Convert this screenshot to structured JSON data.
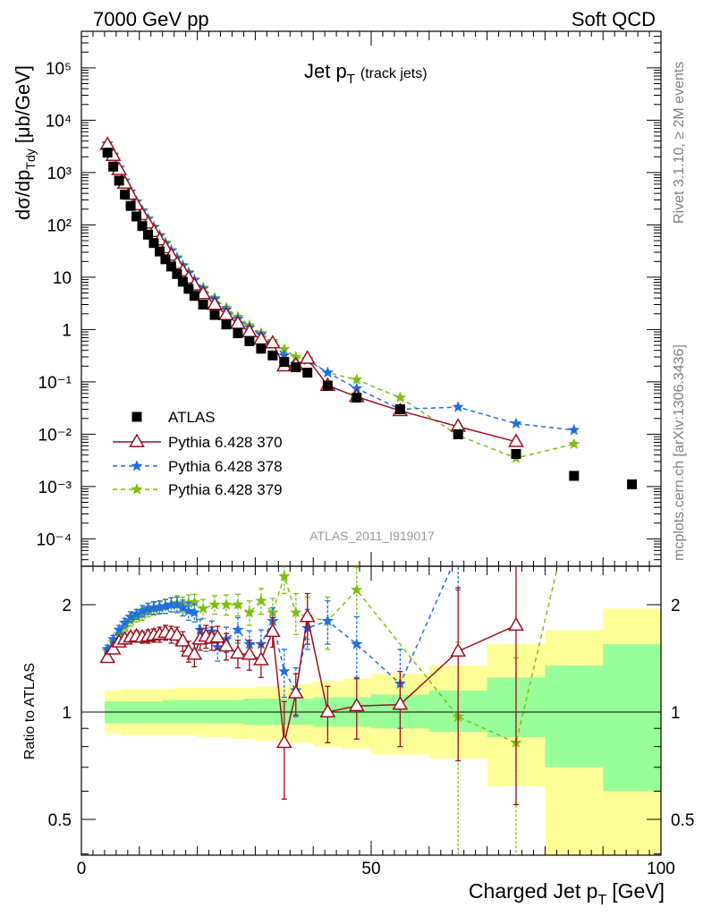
{
  "header": {
    "energy": "7000 GeV pp",
    "category": "Soft QCD"
  },
  "title": {
    "main": "Jet p",
    "sub": "T",
    "note": "(track jets)"
  },
  "side_labels": {
    "rivet": "Rivet 3.1.10, ≥ 2M events",
    "mcplots": "mcplots.cern.ch [arXiv:1306.3436]"
  },
  "watermark": "ATLAS_2011_I919017",
  "colors": {
    "atlas": "#000000",
    "p370": "#9b1020",
    "p378": "#1f6fe0",
    "p379": "#7fbf10",
    "band_syst": "#ffff99",
    "band_stat": "#99ff99"
  },
  "chart_data": [
    {
      "type": "scatter",
      "panel": "main",
      "ylabel": "dσ/dp",
      "ylabel_sub": "Tdy",
      "ylabel_unit": "[μb/GeV]",
      "log_y": true,
      "ylim": [
        3e-05,
        500000
      ],
      "xlim": [
        0,
        100
      ],
      "ytick_labels": [
        "10⁻⁴",
        "10⁻³",
        "10⁻²",
        "10⁻¹",
        "1",
        "10",
        "10²",
        "10³",
        "10⁴",
        "10⁵"
      ],
      "legend_position": "left-lower",
      "series": [
        {
          "name": "ATLAS",
          "style": "square",
          "x": [
            4.5,
            5.5,
            6.5,
            7.5,
            8.5,
            9.5,
            10.5,
            11.5,
            12.5,
            13.5,
            14.5,
            15.5,
            16.5,
            17.5,
            18.5,
            19.5,
            21,
            23,
            25,
            27,
            29,
            31,
            33,
            35,
            37,
            39,
            42.5,
            47.5,
            55,
            65,
            75,
            85,
            95
          ],
          "y": [
            2400,
            1300,
            700,
            380,
            230,
            145,
            95,
            65,
            45,
            31,
            22,
            16,
            11.5,
            8.2,
            6,
            4.4,
            3,
            1.9,
            1.25,
            0.85,
            0.6,
            0.43,
            0.32,
            0.24,
            0.19,
            0.15,
            0.085,
            0.05,
            0.03,
            0.01,
            0.0042,
            0.0016,
            0.0011
          ]
        },
        {
          "name": "Pythia 6.428 370",
          "style": "open-triangle",
          "x": [
            4.5,
            5.5,
            6.5,
            7.5,
            8.5,
            9.5,
            10.5,
            11.5,
            12.5,
            13.5,
            14.5,
            15.5,
            16.5,
            17.5,
            18.5,
            19.5,
            21,
            23,
            25,
            27,
            29,
            31,
            33,
            35,
            37,
            39,
            42.5,
            47.5,
            55,
            65,
            75
          ],
          "y": [
            3400,
            2100,
            1130,
            620,
            380,
            240,
            155,
            107,
            74,
            51,
            36,
            26,
            18,
            13,
            9.5,
            7,
            4.8,
            3,
            1.9,
            1.3,
            0.9,
            0.65,
            0.55,
            0.2,
            0.21,
            0.28,
            0.085,
            0.052,
            0.028,
            0.014,
            0.0072
          ]
        },
        {
          "name": "Pythia 6.428 378",
          "style": "star-dashed",
          "x": [
            4.5,
            5.5,
            6.5,
            7.5,
            8.5,
            9.5,
            10.5,
            11.5,
            12.5,
            13.5,
            14.5,
            15.5,
            16.5,
            17.5,
            18.5,
            19.5,
            21,
            23,
            25,
            27,
            29,
            31,
            33,
            35,
            37,
            39,
            42.5,
            47.5,
            55,
            65,
            75,
            85
          ],
          "y": [
            3600,
            2200,
            1240,
            700,
            430,
            275,
            185,
            130,
            90,
            62,
            44,
            32,
            23,
            16.5,
            12,
            8.8,
            6,
            3.8,
            2.4,
            1.6,
            1.1,
            0.8,
            0.55,
            0.32,
            0.22,
            0.26,
            0.15,
            0.075,
            0.03,
            0.033,
            0.016,
            0.012
          ]
        },
        {
          "name": "Pythia 6.428 379",
          "style": "star-dashed",
          "x": [
            4.5,
            5.5,
            6.5,
            7.5,
            8.5,
            9.5,
            10.5,
            11.5,
            12.5,
            13.5,
            14.5,
            15.5,
            16.5,
            17.5,
            18.5,
            19.5,
            21,
            23,
            25,
            27,
            29,
            31,
            33,
            35,
            37,
            39,
            42.5,
            47.5,
            55,
            65,
            75,
            85
          ],
          "y": [
            3500,
            2100,
            1200,
            700,
            430,
            280,
            190,
            132,
            92,
            64,
            46,
            33,
            24,
            17,
            12.5,
            9,
            6.3,
            4,
            2.6,
            1.75,
            1.2,
            0.85,
            0.6,
            0.42,
            0.3,
            0.27,
            0.15,
            0.11,
            0.05,
            0.0095,
            0.0035,
            0.0065
          ]
        }
      ]
    },
    {
      "type": "line",
      "panel": "ratio",
      "ylabel": "Ratio to ATLAS",
      "xlabel": "Charged Jet p",
      "xlabel_sub": "T",
      "xlabel_unit": "[GeV]",
      "xlim": [
        0,
        100
      ],
      "ylim": [
        0.35,
        2.3
      ],
      "xtick_labels": [
        "0",
        "50",
        "100"
      ],
      "ytick_labels": [
        "0.5",
        "1",
        "2"
      ],
      "bands": {
        "edges": [
          4,
          5,
          6,
          7,
          8,
          9,
          10,
          11,
          12,
          13,
          14,
          15,
          16,
          17,
          18,
          19,
          20,
          22,
          24,
          26,
          28,
          30,
          32,
          34,
          36,
          38,
          40,
          45,
          50,
          60,
          70,
          80,
          90,
          100
        ],
        "stat_lo": [
          0.93,
          0.93,
          0.93,
          0.93,
          0.93,
          0.93,
          0.93,
          0.93,
          0.93,
          0.93,
          0.93,
          0.93,
          0.93,
          0.93,
          0.93,
          0.93,
          0.93,
          0.93,
          0.93,
          0.93,
          0.92,
          0.92,
          0.92,
          0.92,
          0.92,
          0.92,
          0.91,
          0.91,
          0.9,
          0.88,
          0.85,
          0.7,
          0.6
        ],
        "stat_hi": [
          1.07,
          1.07,
          1.07,
          1.07,
          1.07,
          1.07,
          1.07,
          1.07,
          1.07,
          1.07,
          1.08,
          1.08,
          1.08,
          1.08,
          1.08,
          1.08,
          1.08,
          1.08,
          1.08,
          1.08,
          1.09,
          1.09,
          1.09,
          1.09,
          1.09,
          1.09,
          1.1,
          1.1,
          1.12,
          1.15,
          1.25,
          1.35,
          1.55
        ],
        "syst_lo": [
          0.87,
          0.87,
          0.87,
          0.86,
          0.86,
          0.86,
          0.86,
          0.86,
          0.86,
          0.86,
          0.86,
          0.86,
          0.86,
          0.86,
          0.86,
          0.86,
          0.85,
          0.85,
          0.85,
          0.84,
          0.84,
          0.83,
          0.83,
          0.83,
          0.82,
          0.82,
          0.8,
          0.79,
          0.76,
          0.74,
          0.62,
          0.3,
          0.3
        ],
        "syst_hi": [
          1.15,
          1.15,
          1.15,
          1.16,
          1.16,
          1.16,
          1.16,
          1.16,
          1.16,
          1.16,
          1.16,
          1.16,
          1.17,
          1.17,
          1.17,
          1.17,
          1.17,
          1.17,
          1.17,
          1.17,
          1.17,
          1.18,
          1.18,
          1.18,
          1.19,
          1.2,
          1.22,
          1.24,
          1.28,
          1.35,
          1.55,
          1.7,
          1.95
        ]
      },
      "series": [
        {
          "name": "Pythia 6.428 370",
          "x": [
            4.5,
            5.5,
            6.5,
            7.5,
            8.5,
            9.5,
            10.5,
            11.5,
            12.5,
            13.5,
            14.5,
            15.5,
            16.5,
            17.5,
            18.5,
            19.5,
            20.5,
            21.5,
            22.5,
            23.5,
            25,
            27,
            29,
            31,
            33,
            35,
            37,
            39,
            42.5,
            47.5,
            55,
            65,
            75
          ],
          "y": [
            1.42,
            1.5,
            1.57,
            1.6,
            1.62,
            1.63,
            1.62,
            1.63,
            1.64,
            1.65,
            1.67,
            1.65,
            1.64,
            1.58,
            1.48,
            1.45,
            1.6,
            1.63,
            1.61,
            1.62,
            1.53,
            1.46,
            1.45,
            1.4,
            1.68,
            0.82,
            1.13,
            1.85,
            1.0,
            1.04,
            1.05,
            1.48,
            1.75
          ],
          "err": [
            0.04,
            0.04,
            0.04,
            0.05,
            0.05,
            0.06,
            0.06,
            0.07,
            0.07,
            0.08,
            0.08,
            0.09,
            0.09,
            0.1,
            0.1,
            0.11,
            0.11,
            0.12,
            0.12,
            0.12,
            0.13,
            0.13,
            0.14,
            0.15,
            0.16,
            0.25,
            0.15,
            0.3,
            0.18,
            0.2,
            0.25,
            0.75,
            1.2
          ]
        },
        {
          "name": "Pythia 6.428 378",
          "x": [
            4.5,
            5.5,
            6.5,
            7.5,
            8.5,
            9.5,
            10.5,
            11.5,
            12.5,
            13.5,
            14.5,
            15.5,
            16.5,
            17.5,
            18.5,
            19.5,
            20.5,
            21.5,
            22.5,
            23.5,
            25,
            27,
            29,
            31,
            33,
            35,
            37,
            39,
            42.5,
            47.5,
            55,
            65
          ],
          "y": [
            1.5,
            1.6,
            1.7,
            1.78,
            1.85,
            1.88,
            1.92,
            1.95,
            1.96,
            1.97,
            1.98,
            2.0,
            2.0,
            1.96,
            1.92,
            1.9,
            1.7,
            1.6,
            1.68,
            1.52,
            1.6,
            1.7,
            1.55,
            1.55,
            1.8,
            1.3,
            1.15,
            1.72,
            1.8,
            1.55,
            1.2,
            2.8
          ],
          "err": [
            0.04,
            0.04,
            0.05,
            0.05,
            0.06,
            0.06,
            0.07,
            0.07,
            0.08,
            0.08,
            0.09,
            0.09,
            0.1,
            0.1,
            0.11,
            0.11,
            0.12,
            0.12,
            0.12,
            0.13,
            0.13,
            0.14,
            0.14,
            0.15,
            0.16,
            0.2,
            0.18,
            0.22,
            0.25,
            0.3,
            0.3,
            0.6
          ]
        },
        {
          "name": "Pythia 6.428 379",
          "x": [
            4.5,
            5.5,
            6.5,
            7.5,
            8.5,
            9.5,
            10.5,
            11.5,
            12.5,
            13.5,
            14.5,
            15.5,
            16.5,
            17.5,
            18.5,
            19.5,
            21,
            23,
            25,
            27,
            29,
            31,
            33,
            35,
            37,
            39,
            42.5,
            47.5,
            65,
            75,
            85
          ],
          "y": [
            1.48,
            1.57,
            1.65,
            1.73,
            1.8,
            1.85,
            1.88,
            1.92,
            1.95,
            1.96,
            1.98,
            2.0,
            2.02,
            2.0,
            2.02,
            2.03,
            1.95,
            2.0,
            2.0,
            2.0,
            1.9,
            2.05,
            1.9,
            2.4,
            1.9,
            1.85,
            1.8,
            2.2,
            0.97,
            0.82,
            4.0
          ],
          "err": [
            0.04,
            0.04,
            0.05,
            0.05,
            0.06,
            0.06,
            0.07,
            0.07,
            0.08,
            0.08,
            0.09,
            0.09,
            0.1,
            0.1,
            0.11,
            0.11,
            0.12,
            0.12,
            0.13,
            0.14,
            0.15,
            0.17,
            0.18,
            0.25,
            0.25,
            0.25,
            0.3,
            0.35,
            0.6,
            0.6,
            0.8
          ]
        }
      ]
    }
  ]
}
